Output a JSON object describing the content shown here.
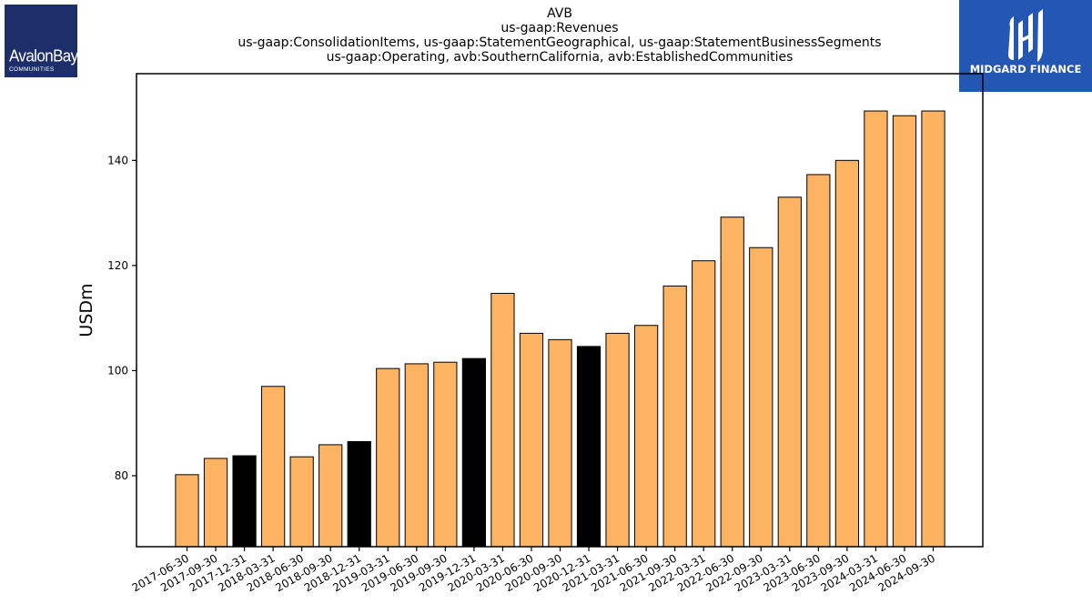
{
  "titles": {
    "line1": "AVB",
    "line2": "us-gaap:Revenues",
    "line3": "us-gaap:ConsolidationItems, us-gaap:StatementGeographical, us-gaap:StatementBusinessSegments",
    "line4": "us-gaap:Operating, avb:SouthernCalifornia, avb:EstablishedCommunities"
  },
  "logos": {
    "left_text": "AvalonBay",
    "left_subtext": "COMMUNITIES",
    "right_text": "MIDGARD FINANCE"
  },
  "colors": {
    "bar_default": "#fdb462",
    "bar_highlight": "#000000",
    "logo_left_bg": "#1d2f6b",
    "logo_right_bg": "#2456b3"
  },
  "chart_data": {
    "type": "bar",
    "title": "",
    "xlabel": "",
    "ylabel": "USDm",
    "ylim": [
      66.5,
      156.5
    ],
    "yticks": [
      80,
      100,
      120,
      140
    ],
    "grid": false,
    "categories": [
      "2017-06-30",
      "2017-09-30",
      "2017-12-31",
      "2018-03-31",
      "2018-06-30",
      "2018-09-30",
      "2018-12-31",
      "2019-03-31",
      "2019-06-30",
      "2019-09-30",
      "2019-12-31",
      "2020-03-31",
      "2020-06-30",
      "2020-09-30",
      "2020-12-31",
      "2021-03-31",
      "2021-06-30",
      "2021-09-30",
      "2022-03-31",
      "2022-06-30",
      "2022-09-30",
      "2023-03-31",
      "2023-06-30",
      "2023-09-30",
      "2024-03-31",
      "2024-06-30",
      "2024-09-30"
    ],
    "values": [
      80.2,
      83.3,
      83.8,
      97.0,
      83.6,
      85.9,
      86.5,
      100.4,
      101.3,
      101.6,
      102.3,
      114.7,
      107.1,
      105.9,
      104.6,
      107.1,
      108.6,
      116.1,
      120.9,
      129.2,
      123.4,
      133.0,
      137.3,
      140.0,
      149.4,
      148.5,
      149.4
    ],
    "highlighted": [
      false,
      false,
      true,
      false,
      false,
      false,
      true,
      false,
      false,
      false,
      true,
      false,
      false,
      false,
      true,
      false,
      false,
      false,
      false,
      false,
      false,
      false,
      false,
      false,
      false,
      false,
      false
    ]
  }
}
